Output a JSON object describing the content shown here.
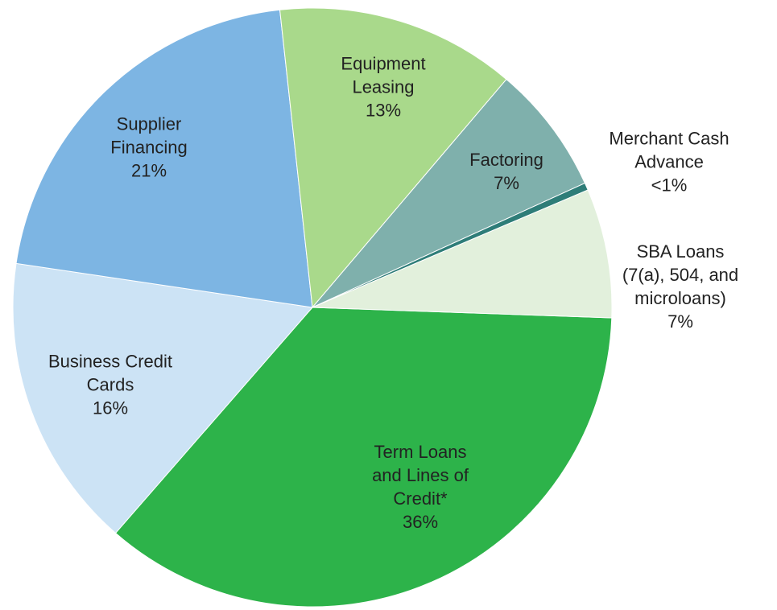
{
  "chart_data": {
    "type": "pie",
    "categories": [
      "Term Loans and Lines of Credit*",
      "Business Credit Cards",
      "Supplier Financing",
      "Equipment Leasing",
      "Factoring",
      "Merchant Cash Advance",
      "SBA Loans (7(a), 504, and microloans)"
    ],
    "values": [
      36,
      16,
      21,
      13,
      7,
      0.4,
      7
    ],
    "value_labels": [
      "36%",
      "16%",
      "21%",
      "13%",
      "7%",
      "<1%",
      "7%"
    ],
    "colors": [
      "#2db34a",
      "#cce3f5",
      "#7db5e3",
      "#a9d98b",
      "#7fb0ac",
      "#2e7d78",
      "#e2f0dc"
    ]
  }
}
